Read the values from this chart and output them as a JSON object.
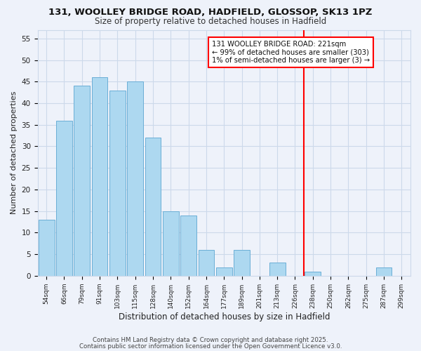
{
  "title1": "131, WOOLLEY BRIDGE ROAD, HADFIELD, GLOSSOP, SK13 1PZ",
  "title2": "Size of property relative to detached houses in Hadfield",
  "xlabel": "Distribution of detached houses by size in Hadfield",
  "ylabel": "Number of detached properties",
  "bar_labels": [
    "54sqm",
    "66sqm",
    "79sqm",
    "91sqm",
    "103sqm",
    "115sqm",
    "128sqm",
    "140sqm",
    "152sqm",
    "164sqm",
    "177sqm",
    "189sqm",
    "201sqm",
    "213sqm",
    "226sqm",
    "238sqm",
    "250sqm",
    "262sqm",
    "275sqm",
    "287sqm",
    "299sqm"
  ],
  "bar_values": [
    13,
    36,
    44,
    46,
    43,
    45,
    32,
    15,
    14,
    6,
    2,
    6,
    0,
    3,
    0,
    1,
    0,
    0,
    0,
    2,
    0
  ],
  "bar_color": "#add8f0",
  "bar_edge_color": "#6aaed6",
  "grid_color": "#ccd9ea",
  "background_color": "#eef2fa",
  "vline_color": "red",
  "vline_x": 14.5,
  "annotation_title": "131 WOOLLEY BRIDGE ROAD: 221sqm",
  "annotation_line1": "← 99% of detached houses are smaller (303)",
  "annotation_line2": "1% of semi-detached houses are larger (3) →",
  "annotation_box_facecolor": "white",
  "annotation_box_edgecolor": "red",
  "ylim": [
    0,
    57
  ],
  "yticks": [
    0,
    5,
    10,
    15,
    20,
    25,
    30,
    35,
    40,
    45,
    50,
    55
  ],
  "footer1": "Contains HM Land Registry data © Crown copyright and database right 2025.",
  "footer2": "Contains public sector information licensed under the Open Government Licence v3.0."
}
